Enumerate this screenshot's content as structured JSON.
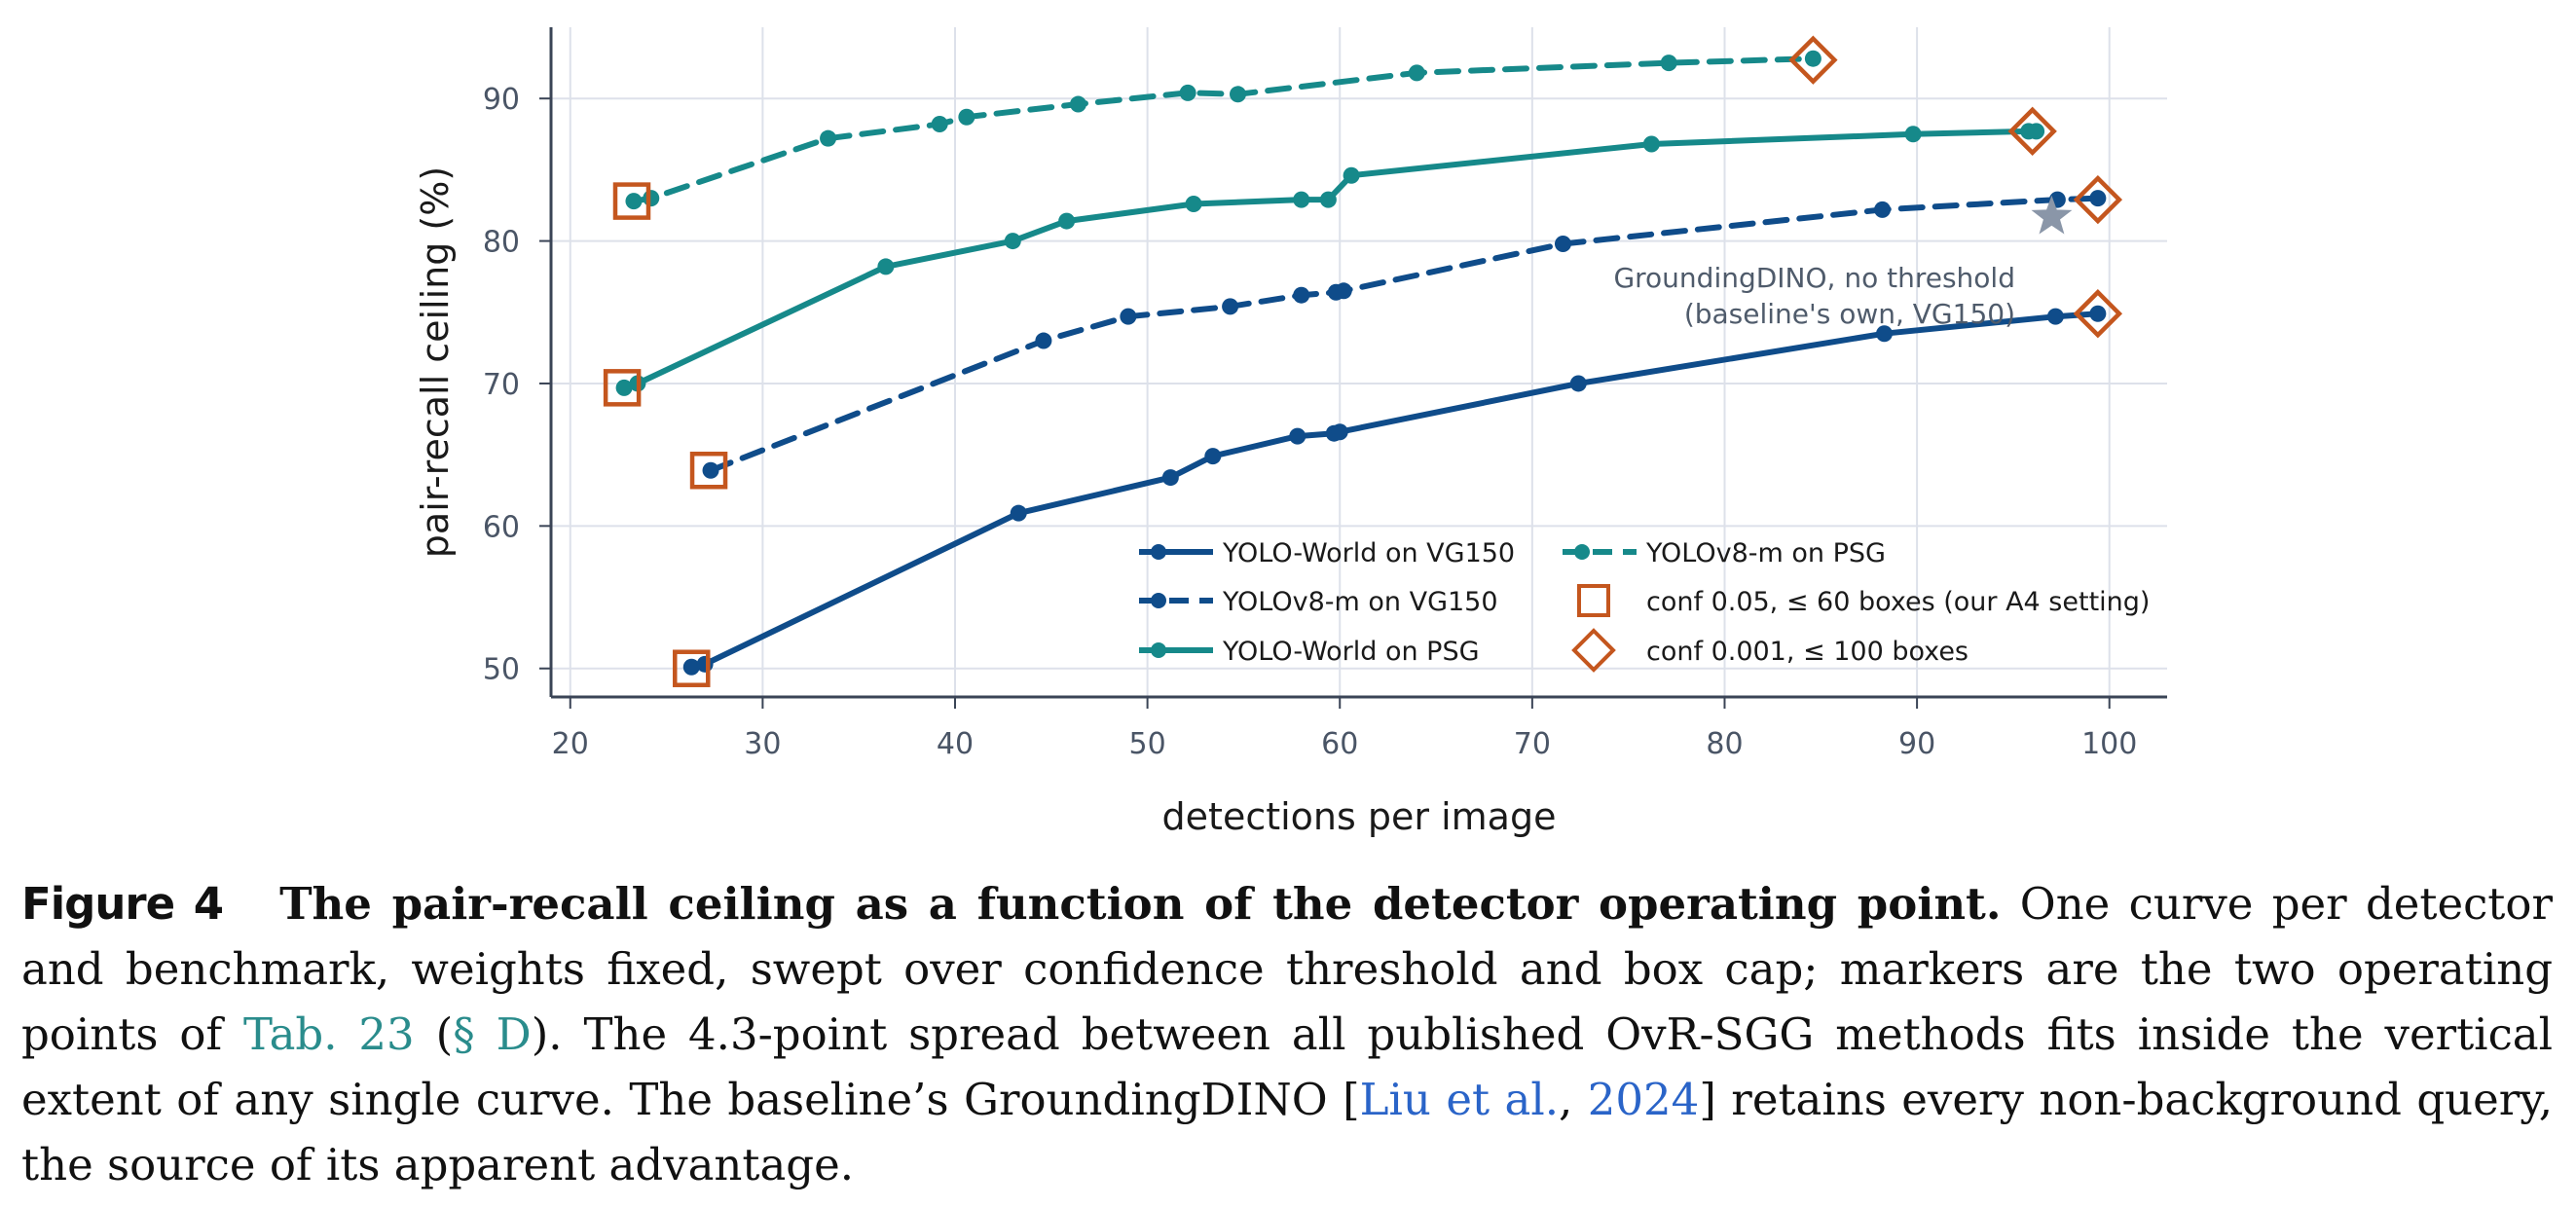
{
  "chart_data": {
    "type": "line",
    "xlabel": "detections per image",
    "ylabel": "pair-recall ceiling (%)",
    "xlim": [
      19,
      103
    ],
    "ylim": [
      48,
      95
    ],
    "xticks": [
      20,
      30,
      40,
      50,
      60,
      70,
      80,
      90,
      100
    ],
    "yticks": [
      50,
      60,
      70,
      80,
      90
    ],
    "grid": true,
    "legend_position": "lower-right",
    "series": [
      {
        "name": "YOLO-World on VG150",
        "color": "#0f4c8a",
        "dash": "solid",
        "points": [
          [
            26.3,
            50.1
          ],
          [
            27.0,
            50.3
          ],
          [
            43.3,
            60.9
          ],
          [
            51.2,
            63.4
          ],
          [
            53.4,
            64.9
          ],
          [
            57.8,
            66.3
          ],
          [
            59.7,
            66.5
          ],
          [
            60.0,
            66.6
          ],
          [
            72.4,
            70.0
          ],
          [
            88.3,
            73.5
          ],
          [
            97.2,
            74.7
          ],
          [
            99.4,
            74.9
          ]
        ]
      },
      {
        "name": "YOLOv8-m on VG150",
        "color": "#0f4c8a",
        "dash": "dashed",
        "points": [
          [
            27.3,
            63.9
          ],
          [
            44.6,
            73.0
          ],
          [
            49.0,
            74.7
          ],
          [
            54.3,
            75.4
          ],
          [
            58.0,
            76.2
          ],
          [
            59.8,
            76.4
          ],
          [
            60.2,
            76.5
          ],
          [
            71.6,
            79.8
          ],
          [
            88.2,
            82.2
          ],
          [
            97.3,
            82.9
          ],
          [
            99.4,
            83.0
          ]
        ]
      },
      {
        "name": "YOLO-World on PSG",
        "color": "#16898a",
        "dash": "solid",
        "points": [
          [
            22.8,
            69.7
          ],
          [
            23.5,
            70.0
          ],
          [
            36.4,
            78.2
          ],
          [
            43.0,
            80.0
          ],
          [
            45.8,
            81.4
          ],
          [
            52.4,
            82.6
          ],
          [
            58.0,
            82.9
          ],
          [
            59.4,
            82.9
          ],
          [
            60.6,
            84.6
          ],
          [
            76.2,
            86.8
          ],
          [
            89.8,
            87.5
          ],
          [
            95.8,
            87.7
          ],
          [
            96.2,
            87.7
          ]
        ]
      },
      {
        "name": "YOLOv8-m on PSG",
        "color": "#16898a",
        "dash": "dashed",
        "points": [
          [
            23.3,
            82.8
          ],
          [
            24.2,
            83.0
          ],
          [
            33.4,
            87.2
          ],
          [
            39.2,
            88.2
          ],
          [
            40.6,
            88.7
          ],
          [
            46.4,
            89.6
          ],
          [
            52.1,
            90.4
          ],
          [
            54.7,
            90.3
          ],
          [
            64.0,
            91.8
          ],
          [
            77.1,
            92.5
          ],
          [
            84.6,
            92.8
          ]
        ]
      }
    ],
    "markers": {
      "square": {
        "label": "conf 0.05, ≤ 60 boxes (our A4 setting)",
        "color": "#c4561e",
        "points": [
          [
            26.3,
            50.0
          ],
          [
            27.2,
            63.9
          ],
          [
            22.7,
            69.7
          ],
          [
            23.2,
            82.8
          ]
        ]
      },
      "diamond": {
        "label": "conf 0.001, ≤ 100 boxes",
        "color": "#c4561e",
        "points": [
          [
            99.4,
            74.9
          ],
          [
            99.4,
            82.9
          ],
          [
            96.0,
            87.7
          ],
          [
            84.6,
            92.7
          ]
        ]
      }
    },
    "star": {
      "x": 97.0,
      "y": 81.7,
      "color": "#8a96a8",
      "annotation_line1": "GroundingDINO, no threshold",
      "annotation_line2": "(baseline's own, VG150)"
    }
  },
  "caption": {
    "figure_label": "Figure 4",
    "title": "The pair-recall ceiling as a function of the detector operating point.",
    "text_1": " One curve per detector and benchmark, weights fixed, swept over confidence threshold and box cap; markers are the two operating points of ",
    "ref_table": "Tab. 23",
    "text_2": " (",
    "ref_section": "§ D",
    "text_3": "). The 4.3-point spread between all published OvR-SGG methods fits inside the vertical extent of any single curve. The baseline’s GroundingDINO [",
    "ref_author": "Liu et al.",
    "text_4": ", ",
    "ref_year": "2024",
    "text_5": "] retains every non-background query, the source of its apparent advantage."
  }
}
